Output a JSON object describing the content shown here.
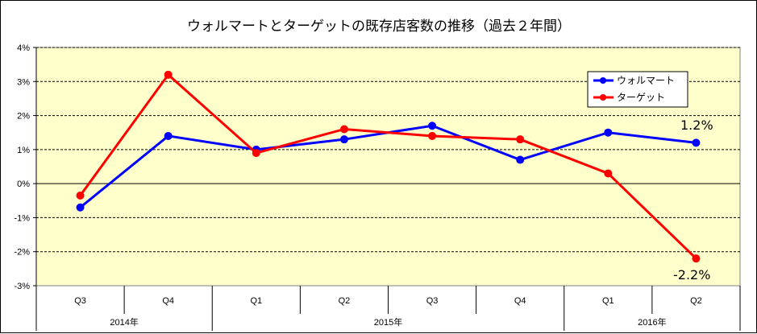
{
  "chart_data": {
    "type": "line",
    "title": "ウォルマートとターゲットの既存店客数の推移（過去２年間）",
    "categories": [
      "Q3",
      "Q4",
      "Q1",
      "Q2",
      "Q3",
      "Q4",
      "Q1",
      "Q2"
    ],
    "year_groups": [
      {
        "label": "2014年",
        "span": 2
      },
      {
        "label": "2015年",
        "span": 4
      },
      {
        "label": "2016年",
        "span": 2
      }
    ],
    "y_ticks": [
      "4%",
      "3%",
      "2%",
      "1%",
      "0%",
      "-1%",
      "-2%",
      "-3%"
    ],
    "ylim": [
      -3,
      4
    ],
    "grid": true,
    "legend_position": "top-right",
    "series": [
      {
        "name": "ウォルマート",
        "color": "#0000ff",
        "values": [
          -0.7,
          1.4,
          1.0,
          1.3,
          1.7,
          0.7,
          1.5,
          1.2
        ]
      },
      {
        "name": "ターゲット",
        "color": "#ff0000",
        "values": [
          -0.35,
          3.2,
          0.9,
          1.6,
          1.4,
          1.3,
          0.3,
          -2.2
        ]
      }
    ],
    "annotations": [
      "1.2%",
      "-2.2%"
    ],
    "plot_background": "#ffffcc"
  }
}
